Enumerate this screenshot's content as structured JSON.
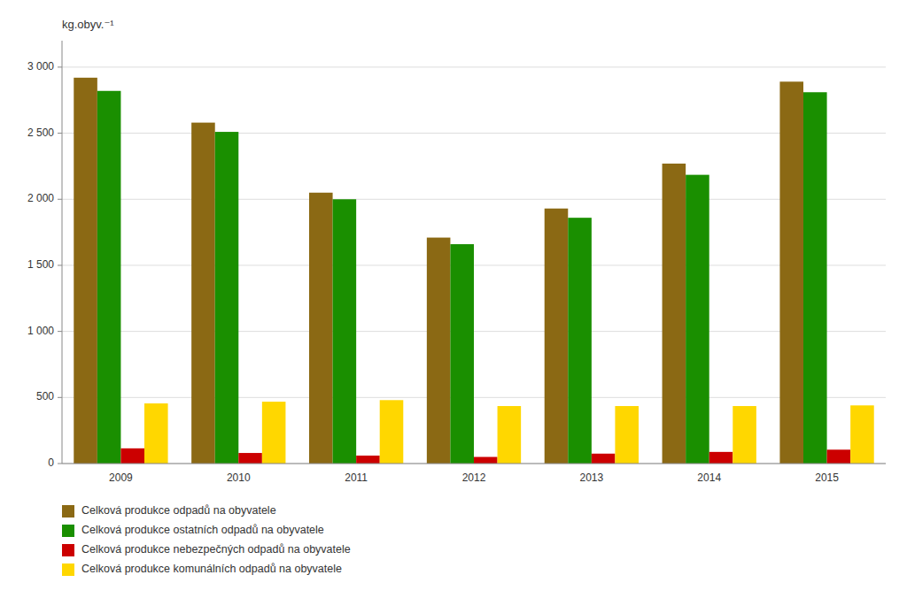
{
  "chart_data": {
    "type": "bar",
    "categories": [
      "2009",
      "2010",
      "2011",
      "2012",
      "2013",
      "2014",
      "2015"
    ],
    "series": [
      {
        "name": "Celková produkce odpadů na obyvatele",
        "color": "#8B6914",
        "values": [
          2920,
          2580,
          2050,
          1710,
          1930,
          2270,
          2890
        ]
      },
      {
        "name": "Celková produkce ostatních odpadů na obyvatele",
        "color": "#1a8f00",
        "values": [
          2820,
          2510,
          2000,
          1660,
          1860,
          2185,
          2810
        ]
      },
      {
        "name": "Celková produkce nebezpečných odpadů na obyvatele",
        "color": "#cc0000",
        "values": [
          115,
          80,
          60,
          50,
          75,
          88,
          105
        ]
      },
      {
        "name": "Celková produkce komunálních odpadů na obyvatele",
        "color": "#FFD700",
        "values": [
          455,
          468,
          480,
          435,
          435,
          435,
          440
        ]
      }
    ],
    "ylabel": "kg.obyv.⁻¹",
    "ylim": [
      0,
      3200
    ],
    "yticks": [
      0,
      500,
      {
        "value": 1000,
        "label": "1 000"
      },
      {
        "value": 1500,
        "label": "1 500"
      },
      {
        "value": 2000,
        "label": "2 000"
      },
      {
        "value": 2500,
        "label": "2 500"
      },
      {
        "value": 3000,
        "label": "3 000"
      }
    ],
    "grid": true,
    "legend": "bottom"
  }
}
